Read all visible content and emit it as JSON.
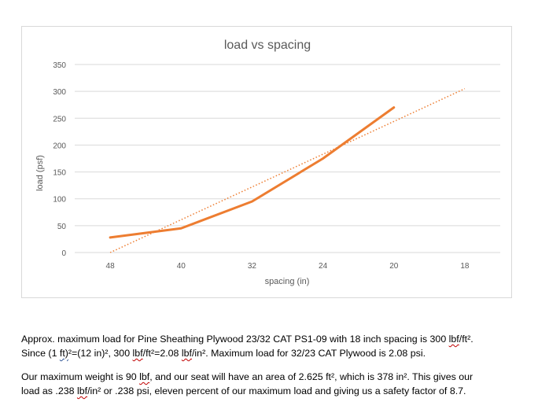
{
  "chart_data": {
    "type": "line",
    "title": "load vs spacing",
    "xlabel": "spacing (in)",
    "ylabel": "load (psf)",
    "categories": [
      "48",
      "40",
      "32",
      "24",
      "20",
      "18"
    ],
    "ylim": [
      0,
      350
    ],
    "yticks": [
      "0",
      "50",
      "100",
      "150",
      "200",
      "250",
      "300",
      "350"
    ],
    "grid": true,
    "legend": "none",
    "series": [
      {
        "values": [
          28,
          45,
          95,
          175,
          270,
          null
        ],
        "color": "#ed7d31",
        "style": "solid"
      }
    ],
    "trendline": {
      "type": "linear",
      "color": "#ed7d31",
      "style": "dotted",
      "start": {
        "category_index": 0,
        "value": 0
      },
      "end": {
        "category_index": 5,
        "value": 305
      }
    }
  },
  "text": {
    "p1_a": "Approx. maximum load for Pine Sheathing Plywood 23/32 CAT PS1-09 with 18 inch spacing is 300 ",
    "p1_lbf1": "lbf",
    "p1_b": "/ft².",
    "p1_c": "Since (1 ",
    "p1_ft": "ft)",
    "p1_d": "²=(12 in)², 300 ",
    "p1_lbf2": "lbf",
    "p1_e": "/ft²=2.08 ",
    "p1_lbf3": "lbf",
    "p1_f": "/in². Maximum load for 32/23 CAT Plywood is 2.08 psi.",
    "p2_a": "Our maximum weight is 90 ",
    "p2_lbf1": "lbf",
    "p2_b": ", and our seat will have an area of 2.625 ft², which is 378 in². This gives our",
    "p2_c": "load as .238 ",
    "p2_lbf2": "lbf",
    "p2_d": "/in² or .238 psi, eleven percent of our maximum load and giving us a safety factor of 8.7."
  }
}
